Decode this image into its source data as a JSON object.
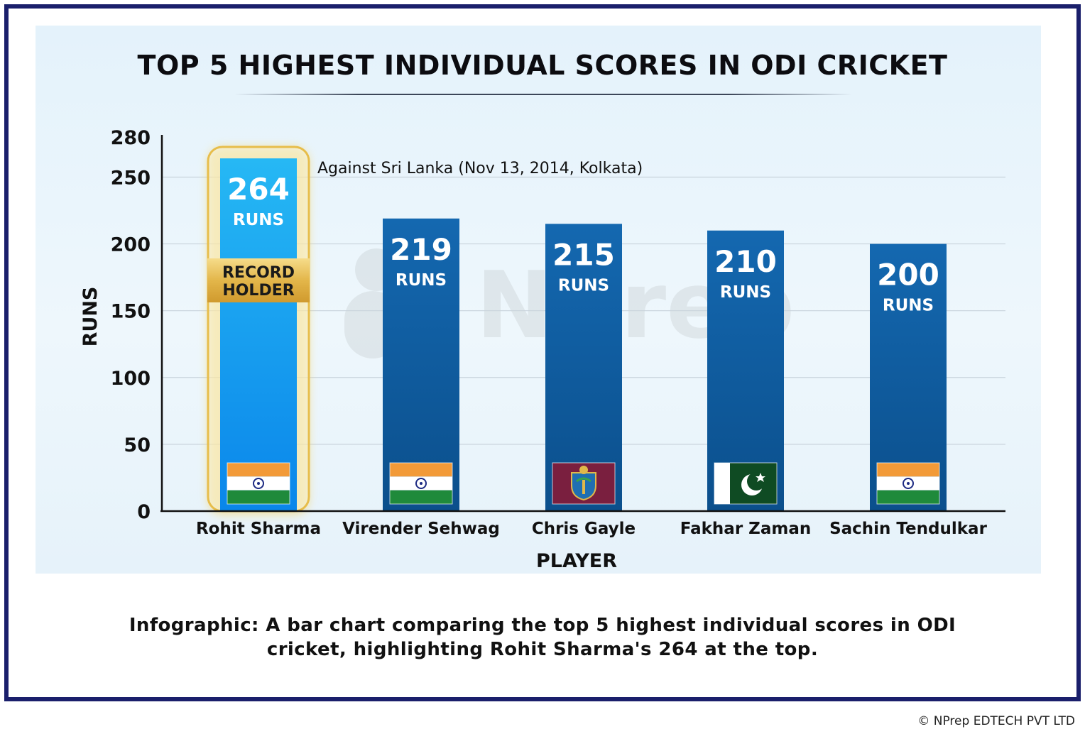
{
  "chart_data": {
    "type": "bar",
    "title": "TOP 5 HIGHEST INDIVIDUAL SCORES IN ODI CRICKET",
    "xlabel": "PLAYER",
    "ylabel": "RUNS",
    "ylim": [
      0,
      280
    ],
    "yticks": [
      0,
      50,
      100,
      150,
      200,
      250,
      280
    ],
    "grid": true,
    "categories": [
      "Rohit Sharma",
      "Virender Sehwag",
      "Chris Gayle",
      "Fakhar Zaman",
      "Sachin Tendulkar"
    ],
    "values": [
      264,
      219,
      215,
      210,
      200
    ],
    "value_unit": "RUNS",
    "flags": [
      "india-flag-icon",
      "india-flag-icon",
      "west-indies-flag-icon",
      "pakistan-flag-icon",
      "india-flag-icon"
    ],
    "highlight": {
      "index": 0,
      "badge_line1": "RECORD",
      "badge_line2": "HOLDER",
      "annotation": "Against Sri Lanka (Nov 13, 2014, Kolkata)"
    },
    "colors": {
      "bar": "#0d5ea3",
      "highlight_bar": "#1aa3f0",
      "gold": "#e7bd4a",
      "axis": "#111111",
      "grid": "#c9d3dc"
    }
  },
  "caption": {
    "line1": "Infographic: A bar chart comparing the top 5 highest individual scores in ODI",
    "line2": "cricket, highlighting Rohit Sharma's 264 at the top."
  },
  "footer": {
    "copyright": "© NPrep EDTECH PVT LTD"
  },
  "watermark": {
    "text": "NPrep"
  }
}
